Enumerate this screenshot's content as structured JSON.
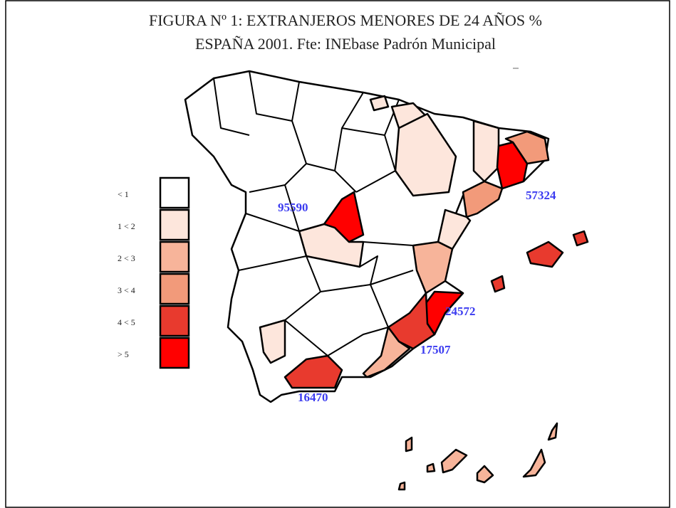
{
  "title": [
    "FIGURA Nº 1: EXTRANJEROS MENORES DE 24 AÑOS %",
    "ESPAÑA 2001. Fte: INEbase Padrón Municipal"
  ],
  "legend": [
    {
      "label": "< 1",
      "color": "#ffffff"
    },
    {
      "label": "1 < 2",
      "color": "#fde6dc"
    },
    {
      "label": "2 < 3",
      "color": "#f7b49a"
    },
    {
      "label": "3 < 4",
      "color": "#f29a7a"
    },
    {
      "label": "4 < 5",
      "color": "#e83a2e"
    },
    {
      "label": "> 5",
      "color": "#ff0000"
    }
  ],
  "labels": [
    95590,
    57324,
    24572,
    17507,
    16470
  ]
}
